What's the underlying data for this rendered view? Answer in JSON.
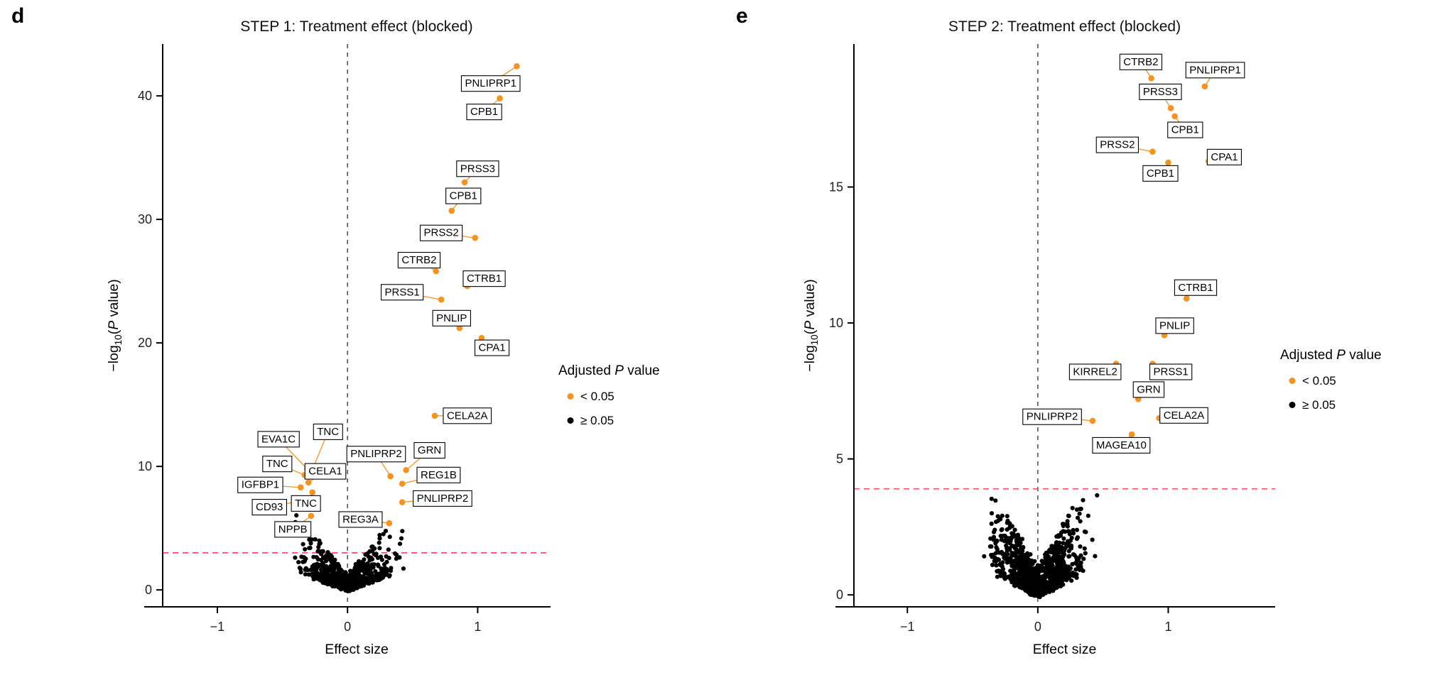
{
  "page": {
    "background": "#ffffff"
  },
  "colors": {
    "significant": "#F59322",
    "nonsignificant": "#000000",
    "threshold_line": "#F8566E",
    "zero_line": "#4a4a4a",
    "axis": "#000000",
    "label_box_fill": "#ffffff",
    "label_box_border": "#000000",
    "title_color": "#111111",
    "tick_color": "#222222"
  },
  "chart_data": [
    {
      "type": "scatter",
      "subtype": "volcano",
      "panel_letter": "d",
      "title": "STEP 1: Treatment effect (blocked)",
      "xlabel": "Effect size",
      "ylabel": {
        "prefix": "−log",
        "sub": "10",
        "open": "(",
        "italic": "P",
        "close": " value)"
      },
      "xlim": [
        -1.42,
        1.56
      ],
      "ylim": [
        -1.37,
        44.2
      ],
      "xticks": [
        -1,
        0,
        1
      ],
      "yticks": [
        0,
        10,
        20,
        30,
        40
      ],
      "grid": false,
      "vline_x": 0,
      "threshold_line_y": 3.0,
      "legend": {
        "position": "right",
        "title_pre": "Adjusted ",
        "title_italic": "P",
        "title_post": " value",
        "entries": [
          {
            "label": "< 0.05",
            "color": "#F59322"
          },
          {
            "label": "≥ 0.05",
            "color": "#000000"
          }
        ]
      },
      "labeled_points": [
        {
          "label": "PNLIPRP1",
          "x": 1.3,
          "y": 42.4,
          "lx": 1.1,
          "ly": 41.0
        },
        {
          "label": "CPB1",
          "x": 1.17,
          "y": 39.8,
          "lx": 1.05,
          "ly": 38.7
        },
        {
          "label": "PRSS3",
          "x": 0.9,
          "y": 33.0,
          "lx": 1.0,
          "ly": 34.1
        },
        {
          "label": "CPB1",
          "x": 0.8,
          "y": 30.7,
          "lx": 0.89,
          "ly": 31.9
        },
        {
          "label": "PRSS2",
          "x": 0.98,
          "y": 28.5,
          "lx": 0.72,
          "ly": 28.9
        },
        {
          "label": "CTRB2",
          "x": 0.68,
          "y": 25.8,
          "lx": 0.55,
          "ly": 26.7
        },
        {
          "label": "CTRB1",
          "x": 0.92,
          "y": 24.6,
          "lx": 1.05,
          "ly": 25.2
        },
        {
          "label": "PRSS1",
          "x": 0.72,
          "y": 23.5,
          "lx": 0.42,
          "ly": 24.1
        },
        {
          "label": "PNLIP",
          "x": 0.86,
          "y": 21.2,
          "lx": 0.8,
          "ly": 22.0
        },
        {
          "label": "CPA1",
          "x": 1.03,
          "y": 20.4,
          "lx": 1.11,
          "ly": 19.6
        },
        {
          "label": "CELA2A",
          "x": 0.67,
          "y": 14.1,
          "lx": 0.92,
          "ly": 14.1
        },
        {
          "label": "TNC",
          "x": -0.26,
          "y": 10.0,
          "lx": -0.15,
          "ly": 12.8
        },
        {
          "label": "EVA1C",
          "x": -0.31,
          "y": 9.8,
          "lx": -0.53,
          "ly": 12.2
        },
        {
          "label": "TNC",
          "x": -0.33,
          "y": 9.3,
          "lx": -0.54,
          "ly": 10.2
        },
        {
          "label": "CELA1",
          "x": -0.3,
          "y": 8.7,
          "lx": -0.17,
          "ly": 9.6
        },
        {
          "label": "PNLIPRP2",
          "x": 0.33,
          "y": 9.2,
          "lx": 0.22,
          "ly": 11.0
        },
        {
          "label": "GRN",
          "x": 0.45,
          "y": 9.7,
          "lx": 0.63,
          "ly": 11.3
        },
        {
          "label": "REG1B",
          "x": 0.42,
          "y": 8.6,
          "lx": 0.7,
          "ly": 9.3
        },
        {
          "label": "IGFBP1",
          "x": -0.36,
          "y": 8.3,
          "lx": -0.67,
          "ly": 8.5
        },
        {
          "label": "TNC",
          "x": -0.27,
          "y": 7.9,
          "lx": -0.32,
          "ly": 7.0
        },
        {
          "label": "CD93",
          "x": -0.37,
          "y": 7.2,
          "lx": -0.6,
          "ly": 6.7
        },
        {
          "label": "PNLIPRP2",
          "x": 0.42,
          "y": 7.1,
          "lx": 0.73,
          "ly": 7.4
        },
        {
          "label": "REG3A",
          "x": 0.32,
          "y": 5.4,
          "lx": 0.1,
          "ly": 5.7
        },
        {
          "label": "NPPB",
          "x": -0.28,
          "y": 6.0,
          "lx": -0.42,
          "ly": 4.9
        }
      ],
      "cloud": {
        "seed": 11,
        "count": 620,
        "x_spread": 0.48,
        "y_base": 1.2,
        "y_slope": 13,
        "y_min_slope": 3.5
      }
    },
    {
      "type": "scatter",
      "subtype": "volcano",
      "panel_letter": "e",
      "title": "STEP 2: Treatment effect (blocked)",
      "xlabel": "Effect size",
      "ylabel": {
        "prefix": "−log",
        "sub": "10",
        "open": "(",
        "italic": "P",
        "close": " value)"
      },
      "xlim": [
        -1.41,
        1.82
      ],
      "ylim": [
        -0.44,
        20.26
      ],
      "xticks": [
        -1,
        0,
        1
      ],
      "yticks": [
        0,
        5,
        10,
        15
      ],
      "grid": false,
      "vline_x": 0,
      "threshold_line_y": 3.9,
      "legend": {
        "position": "right",
        "title_pre": "Adjusted ",
        "title_italic": "P",
        "title_post": " value",
        "entries": [
          {
            "label": "< 0.05",
            "color": "#F59322"
          },
          {
            "label": "≥ 0.05",
            "color": "#000000"
          }
        ]
      },
      "labeled_points": [
        {
          "label": "CTRB2",
          "x": 0.87,
          "y": 19.0,
          "lx": 0.79,
          "ly": 19.6
        },
        {
          "label": "PNLIPRP1",
          "x": 1.28,
          "y": 18.7,
          "lx": 1.36,
          "ly": 19.3
        },
        {
          "label": "PRSS3",
          "x": 1.02,
          "y": 17.9,
          "lx": 0.94,
          "ly": 18.5
        },
        {
          "label": "CPB1",
          "x": 1.05,
          "y": 17.6,
          "lx": 1.13,
          "ly": 17.1
        },
        {
          "label": "PRSS2",
          "x": 0.88,
          "y": 16.3,
          "lx": 0.61,
          "ly": 16.55
        },
        {
          "label": "CPA1",
          "x": 1.31,
          "y": 15.95,
          "lx": 1.43,
          "ly": 16.1
        },
        {
          "label": "CPB1",
          "x": 1.0,
          "y": 15.9,
          "lx": 0.94,
          "ly": 15.5
        },
        {
          "label": "CTRB1",
          "x": 1.14,
          "y": 10.9,
          "lx": 1.21,
          "ly": 11.3
        },
        {
          "label": "PNLIP",
          "x": 0.97,
          "y": 9.55,
          "lx": 1.05,
          "ly": 9.9
        },
        {
          "label": "KIRREL2",
          "x": 0.6,
          "y": 8.5,
          "lx": 0.44,
          "ly": 8.2
        },
        {
          "label": "PRSS1",
          "x": 0.88,
          "y": 8.5,
          "lx": 1.02,
          "ly": 8.2
        },
        {
          "label": "GRN",
          "x": 0.77,
          "y": 7.2,
          "lx": 0.85,
          "ly": 7.55
        },
        {
          "label": "PNLIPRP2",
          "x": 0.42,
          "y": 6.4,
          "lx": 0.11,
          "ly": 6.55
        },
        {
          "label": "CELA2A",
          "x": 0.93,
          "y": 6.5,
          "lx": 1.12,
          "ly": 6.6
        },
        {
          "label": "MAGEA10",
          "x": 0.72,
          "y": 5.9,
          "lx": 0.64,
          "ly": 5.5
        }
      ],
      "cloud": {
        "seed": 99,
        "count": 900,
        "x_spread": 0.5,
        "y_base": 1.0,
        "y_slope": 8,
        "y_min_slope": 2.5
      }
    }
  ]
}
